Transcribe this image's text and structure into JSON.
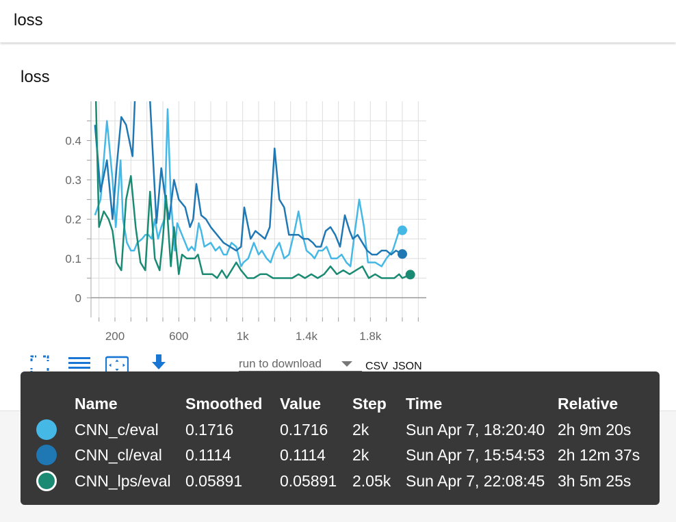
{
  "header": {
    "title": "loss"
  },
  "card": {
    "title": "loss"
  },
  "chart_data": {
    "type": "line",
    "title": "loss",
    "xlabel": "",
    "ylabel": "",
    "xlim": [
      50,
      2150
    ],
    "ylim": [
      -0.05,
      0.5
    ],
    "x_ticks": [
      200,
      600,
      1000,
      1400,
      1800
    ],
    "x_tick_labels": [
      "200",
      "600",
      "1k",
      "1.4k",
      "1.8k"
    ],
    "y_ticks": [
      0,
      0.1,
      0.2,
      0.3,
      0.4
    ],
    "y_tick_labels": [
      "0",
      "0.1",
      "0.2",
      "0.3",
      "0.4"
    ],
    "grid": true,
    "series": [
      {
        "name": "CNN_c/eval",
        "color": "#45b8e5",
        "x": [
          75,
          110,
          150,
          185,
          205,
          235,
          250,
          275,
          300,
          320,
          340,
          370,
          390,
          410,
          430,
          450,
          470,
          490,
          510,
          530,
          550,
          575,
          590,
          620,
          640,
          660,
          680,
          700,
          725,
          740,
          760,
          800,
          830,
          855,
          880,
          900,
          930,
          960,
          990,
          1005,
          1035,
          1070,
          1100,
          1120,
          1150,
          1175,
          1200,
          1230,
          1260,
          1290,
          1325,
          1350,
          1375,
          1400,
          1430,
          1450,
          1475,
          1500,
          1525,
          1555,
          1590,
          1620,
          1650,
          1675,
          1700,
          1730,
          1760,
          1785,
          1800,
          1830,
          1870,
          1900,
          1940,
          1980,
          2000
        ],
        "y": [
          0.21,
          0.25,
          0.45,
          0.3,
          0.18,
          0.35,
          0.2,
          0.14,
          0.12,
          0.12,
          0.14,
          0.15,
          0.16,
          0.16,
          0.15,
          0.2,
          0.15,
          0.18,
          0.2,
          0.48,
          0.25,
          0.12,
          0.19,
          0.16,
          0.14,
          0.12,
          0.13,
          0.12,
          0.19,
          0.17,
          0.13,
          0.14,
          0.12,
          0.13,
          0.11,
          0.11,
          0.14,
          0.13,
          0.08,
          0.09,
          0.1,
          0.14,
          0.11,
          0.12,
          0.1,
          0.09,
          0.12,
          0.14,
          0.1,
          0.11,
          0.17,
          0.22,
          0.16,
          0.12,
          0.11,
          0.1,
          0.12,
          0.12,
          0.13,
          0.1,
          0.1,
          0.11,
          0.09,
          0.08,
          0.16,
          0.25,
          0.18,
          0.09,
          0.09,
          0.09,
          0.08,
          0.1,
          0.12,
          0.17,
          0.1716
        ]
      },
      {
        "name": "CNN_cl/eval",
        "color": "#1f78b4",
        "x": [
          75,
          110,
          150,
          185,
          210,
          240,
          270,
          310,
          350,
          385,
          420,
          460,
          490,
          510,
          540,
          570,
          600,
          640,
          670,
          690,
          710,
          740,
          770,
          800,
          840,
          880,
          920,
          960,
          990,
          1010,
          1050,
          1080,
          1110,
          1140,
          1170,
          1200,
          1230,
          1260,
          1290,
          1320,
          1350,
          1380,
          1410,
          1440,
          1460,
          1490,
          1520,
          1550,
          1580,
          1610,
          1640,
          1670,
          1690,
          1720,
          1750,
          1780,
          1810,
          1840,
          1870,
          1900,
          1930,
          1960,
          2000
        ],
        "y": [
          0.44,
          0.27,
          0.35,
          0.2,
          0.33,
          0.46,
          0.44,
          0.36,
          0.75,
          0.7,
          0.5,
          0.19,
          0.33,
          0.27,
          0.2,
          0.3,
          0.25,
          0.23,
          0.18,
          0.2,
          0.29,
          0.21,
          0.2,
          0.18,
          0.16,
          0.14,
          0.13,
          0.12,
          0.13,
          0.23,
          0.15,
          0.17,
          0.16,
          0.15,
          0.18,
          0.38,
          0.25,
          0.23,
          0.16,
          0.16,
          0.16,
          0.15,
          0.15,
          0.14,
          0.13,
          0.13,
          0.17,
          0.18,
          0.16,
          0.13,
          0.21,
          0.17,
          0.15,
          0.16,
          0.14,
          0.12,
          0.11,
          0.11,
          0.12,
          0.12,
          0.11,
          0.12,
          0.1114
        ]
      },
      {
        "name": "CNN_lps/eval",
        "color": "#1a8a73",
        "x": [
          75,
          100,
          130,
          160,
          185,
          210,
          240,
          270,
          300,
          330,
          360,
          390,
          420,
          450,
          480,
          500,
          520,
          550,
          570,
          600,
          620,
          650,
          680,
          700,
          720,
          750,
          780,
          810,
          840,
          870,
          900,
          930,
          960,
          990,
          1030,
          1070,
          1110,
          1150,
          1190,
          1230,
          1270,
          1310,
          1350,
          1390,
          1430,
          1470,
          1510,
          1550,
          1590,
          1630,
          1670,
          1710,
          1750,
          1790,
          1830,
          1870,
          1910,
          1950,
          1980,
          2000,
          2050
        ],
        "y": [
          0.6,
          0.18,
          0.22,
          0.2,
          0.17,
          0.09,
          0.07,
          0.25,
          0.31,
          0.18,
          0.09,
          0.07,
          0.27,
          0.1,
          0.07,
          0.15,
          0.26,
          0.08,
          0.18,
          0.06,
          0.11,
          0.1,
          0.1,
          0.1,
          0.11,
          0.06,
          0.06,
          0.06,
          0.05,
          0.07,
          0.05,
          0.07,
          0.09,
          0.07,
          0.05,
          0.05,
          0.06,
          0.06,
          0.05,
          0.05,
          0.05,
          0.05,
          0.06,
          0.05,
          0.06,
          0.05,
          0.06,
          0.08,
          0.06,
          0.07,
          0.06,
          0.07,
          0.08,
          0.05,
          0.06,
          0.05,
          0.05,
          0.05,
          0.06,
          0.05,
          0.05891
        ]
      }
    ]
  },
  "toolbar": {
    "download_placeholder": "run to download",
    "csv_label": "CSV",
    "json_label": "JSON"
  },
  "tooltip": {
    "headers": {
      "name": "Name",
      "smoothed": "Smoothed",
      "value": "Value",
      "step": "Step",
      "time": "Time",
      "relative": "Relative"
    },
    "rows": [
      {
        "name": "CNN_c/eval",
        "smoothed": "0.1716",
        "value": "0.1716",
        "step": "2k",
        "time": "Sun Apr 7, 18:20:40",
        "relative": "2h 9m 20s",
        "color": "#45b8e5"
      },
      {
        "name": "CNN_cl/eval",
        "smoothed": "0.1114",
        "value": "0.1114",
        "step": "2k",
        "time": "Sun Apr 7, 15:54:53",
        "relative": "2h 12m 37s",
        "color": "#1f78b4"
      },
      {
        "name": "CNN_lps/eval",
        "smoothed": "0.05891",
        "value": "0.05891",
        "step": "2.05k",
        "time": "Sun Apr 7, 22:08:45",
        "relative": "3h 5m 25s",
        "color": "#1a8a73"
      }
    ]
  }
}
